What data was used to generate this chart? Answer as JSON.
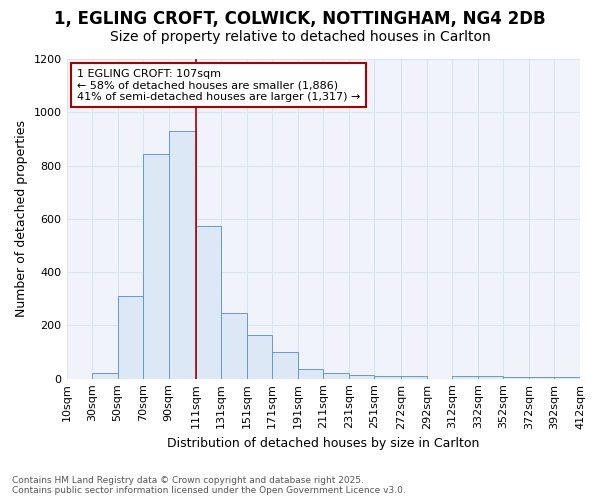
{
  "title_line1": "1, EGLING CROFT, COLWICK, NOTTINGHAM, NG4 2DB",
  "title_line2": "Size of property relative to detached houses in Carlton",
  "xlabel": "Distribution of detached houses by size in Carlton",
  "ylabel": "Number of detached properties",
  "bar_color": "#dce8f5",
  "bar_edge_color": "#6699cc",
  "bin_labels": [
    "10sqm",
    "30sqm",
    "50sqm",
    "70sqm",
    "90sqm",
    "111sqm",
    "131sqm",
    "151sqm",
    "171sqm",
    "191sqm",
    "211sqm",
    "231sqm",
    "251sqm",
    "272sqm",
    "292sqm",
    "312sqm",
    "332sqm",
    "352sqm",
    "372sqm",
    "392sqm",
    "412sqm"
  ],
  "bin_lefts": [
    10,
    30,
    50,
    70,
    90,
    111,
    131,
    151,
    171,
    191,
    211,
    231,
    251,
    272,
    292,
    312,
    332,
    352,
    372,
    392
  ],
  "bin_widths": [
    20,
    20,
    20,
    20,
    21,
    20,
    20,
    20,
    20,
    20,
    20,
    20,
    21,
    20,
    20,
    20,
    20,
    20,
    20,
    20
  ],
  "bar_heights": [
    0,
    20,
    310,
    845,
    930,
    575,
    245,
    165,
    100,
    35,
    20,
    15,
    10,
    10,
    0,
    10,
    10,
    5,
    5,
    5
  ],
  "xlim": [
    10,
    412
  ],
  "ylim": [
    0,
    1200
  ],
  "yticks": [
    0,
    200,
    400,
    600,
    800,
    1000,
    1200
  ],
  "property_label": "1 EGLING CROFT: 107sqm",
  "annotation_line2": "← 58% of detached houses are smaller (1,886)",
  "annotation_line3": "41% of semi-detached houses are larger (1,317) →",
  "vline_x": 111,
  "vline_color": "#aa0000",
  "annotation_box_color": "#aa0000",
  "background_color": "#ffffff",
  "plot_bg_color": "#f0f4fa",
  "footer_line1": "Contains HM Land Registry data © Crown copyright and database right 2025.",
  "footer_line2": "Contains public sector information licensed under the Open Government Licence v3.0.",
  "grid_color": "#d8e4f0",
  "title_fontsize": 12,
  "subtitle_fontsize": 10,
  "axis_label_fontsize": 9,
  "tick_fontsize": 8,
  "footer_fontsize": 6.5
}
